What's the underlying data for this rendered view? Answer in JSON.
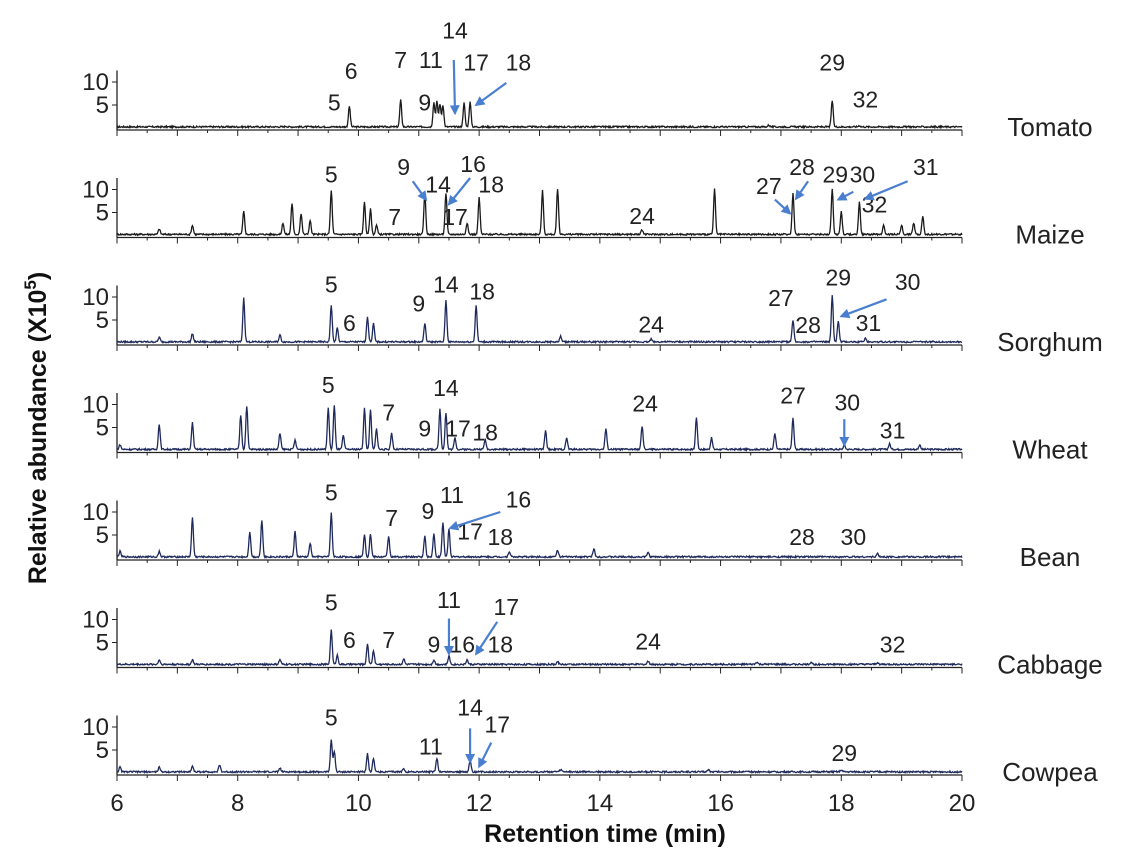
{
  "chart_data": {
    "type": "line",
    "xlabel": "Retention time (min)",
    "ylabel": "Relative abundance (X10",
    "ylabel_exp": "5",
    "ylabel_close": ")",
    "xlim": [
      6,
      20
    ],
    "x_ticks": [
      6,
      8,
      10,
      12,
      14,
      16,
      18,
      20
    ],
    "y_ticks": [
      5,
      10
    ],
    "colors": {
      "black": "#1a1a1a",
      "navy": "#1f2a5c",
      "arrow": "#4a7fd0"
    },
    "samples": [
      {
        "name": "Tomato",
        "color": "black",
        "peaks": [
          [
            8.8,
            0.15
          ],
          [
            9.85,
            4.5
          ],
          [
            10.7,
            5.8
          ],
          [
            11.25,
            5.3
          ],
          [
            11.3,
            5.5
          ],
          [
            11.35,
            5.0
          ],
          [
            11.4,
            4.8
          ],
          [
            11.75,
            5.2
          ],
          [
            11.85,
            5.4
          ],
          [
            16.8,
            0.4
          ],
          [
            17.85,
            5.7
          ],
          [
            18.3,
            0.3
          ]
        ],
        "labels": [
          {
            "text": "5",
            "x": 9.6,
            "y": 3.8
          },
          {
            "text": "6",
            "x": 9.88,
            "y": 10.7
          },
          {
            "text": "7",
            "x": 10.7,
            "y": 13.0
          },
          {
            "text": "11",
            "x": 11.2,
            "y": 13.0
          },
          {
            "text": "9",
            "x": 11.1,
            "y": 3.8
          },
          {
            "text": "14",
            "x": 11.6,
            "y": 19.5
          },
          {
            "text": "17",
            "x": 11.95,
            "y": 12.5
          },
          {
            "text": "18",
            "x": 12.65,
            "y": 12.5
          },
          {
            "text": "29",
            "x": 17.85,
            "y": 12.5
          },
          {
            "text": "32",
            "x": 18.4,
            "y": 4.5
          }
        ],
        "arrows": [
          {
            "x1": 11.58,
            "y1": 14.8,
            "x2": 11.6,
            "y2": 3.2
          },
          {
            "x1": 12.45,
            "y1": 9.8,
            "x2": 11.95,
            "y2": 5.0
          }
        ]
      },
      {
        "name": "Maize",
        "color": "black",
        "peaks": [
          [
            6.7,
            1.2
          ],
          [
            7.25,
            2.0
          ],
          [
            8.1,
            5.0
          ],
          [
            8.75,
            2.5
          ],
          [
            8.9,
            6.8
          ],
          [
            9.05,
            4.5
          ],
          [
            9.2,
            3.0
          ],
          [
            9.55,
            9.5
          ],
          [
            10.1,
            7.0
          ],
          [
            10.2,
            5.5
          ],
          [
            10.3,
            2.0
          ],
          [
            11.1,
            9.0
          ],
          [
            11.45,
            9.0
          ],
          [
            11.8,
            2.5
          ],
          [
            12.0,
            8.0
          ],
          [
            13.05,
            9.5
          ],
          [
            13.3,
            10.0
          ],
          [
            14.7,
            1.0
          ],
          [
            15.9,
            9.8
          ],
          [
            17.2,
            9.0
          ],
          [
            17.85,
            10.0
          ],
          [
            18.0,
            5.0
          ],
          [
            18.3,
            7.0
          ],
          [
            18.7,
            2.0
          ],
          [
            19.0,
            2.0
          ],
          [
            19.2,
            2.5
          ],
          [
            19.35,
            4.0
          ]
        ],
        "labels": [
          {
            "text": "5",
            "x": 9.55,
            "y": 11.5
          },
          {
            "text": "9",
            "x": 10.75,
            "y": 13.2
          },
          {
            "text": "14",
            "x": 11.32,
            "y": 9.3
          },
          {
            "text": "16",
            "x": 11.9,
            "y": 13.8
          },
          {
            "text": "17",
            "x": 11.6,
            "y": 2.3
          },
          {
            "text": "18",
            "x": 12.2,
            "y": 9.3
          },
          {
            "text": "7",
            "x": 10.6,
            "y": 2.3
          },
          {
            "text": "24",
            "x": 14.7,
            "y": 2.5
          },
          {
            "text": "27",
            "x": 16.8,
            "y": 9.0
          },
          {
            "text": "28",
            "x": 17.35,
            "y": 13.2
          },
          {
            "text": "29",
            "x": 17.9,
            "y": 11.5
          },
          {
            "text": "30",
            "x": 18.35,
            "y": 11.5
          },
          {
            "text": "31",
            "x": 19.4,
            "y": 13.2
          },
          {
            "text": "32",
            "x": 18.55,
            "y": 5.0
          }
        ],
        "arrows": [
          {
            "x1": 10.9,
            "y1": 11.8,
            "x2": 11.12,
            "y2": 7.8
          },
          {
            "x1": 11.85,
            "y1": 12.5,
            "x2": 11.5,
            "y2": 6.8
          },
          {
            "x1": 16.9,
            "y1": 7.8,
            "x2": 17.15,
            "y2": 4.8
          },
          {
            "x1": 17.45,
            "y1": 11.8,
            "x2": 17.25,
            "y2": 8.0
          },
          {
            "x1": 18.2,
            "y1": 9.5,
            "x2": 17.95,
            "y2": 7.8
          },
          {
            "x1": 19.1,
            "y1": 11.8,
            "x2": 18.4,
            "y2": 8.0
          }
        ]
      },
      {
        "name": "Sorghum",
        "color": "navy",
        "peaks": [
          [
            6.7,
            1.0
          ],
          [
            7.25,
            1.8
          ],
          [
            8.1,
            9.5
          ],
          [
            8.7,
            1.5
          ],
          [
            9.55,
            8.0
          ],
          [
            9.65,
            3.0
          ],
          [
            10.15,
            5.5
          ],
          [
            10.25,
            4.0
          ],
          [
            11.1,
            4.0
          ],
          [
            11.45,
            9.0
          ],
          [
            11.95,
            8.0
          ],
          [
            13.35,
            1.2
          ],
          [
            14.85,
            0.6
          ],
          [
            17.2,
            4.8
          ],
          [
            17.85,
            10.0
          ],
          [
            17.95,
            4.5
          ],
          [
            18.4,
            0.8
          ]
        ],
        "labels": [
          {
            "text": "5",
            "x": 9.55,
            "y": 11.0
          },
          {
            "text": "6",
            "x": 9.85,
            "y": 2.6
          },
          {
            "text": "9",
            "x": 11.0,
            "y": 6.8
          },
          {
            "text": "14",
            "x": 11.45,
            "y": 11.0
          },
          {
            "text": "18",
            "x": 12.05,
            "y": 9.5
          },
          {
            "text": "24",
            "x": 14.85,
            "y": 2.3
          },
          {
            "text": "27",
            "x": 17.0,
            "y": 8.0
          },
          {
            "text": "28",
            "x": 17.45,
            "y": 2.2
          },
          {
            "text": "29",
            "x": 17.95,
            "y": 12.5
          },
          {
            "text": "30",
            "x": 19.1,
            "y": 11.5
          },
          {
            "text": "31",
            "x": 18.45,
            "y": 2.6
          }
        ],
        "arrows": [
          {
            "x1": 18.75,
            "y1": 9.5,
            "x2": 18.0,
            "y2": 5.8
          }
        ]
      },
      {
        "name": "Wheat",
        "color": "navy",
        "peaks": [
          [
            6.05,
            1.0
          ],
          [
            6.7,
            5.5
          ],
          [
            7.25,
            5.8
          ],
          [
            8.05,
            7.5
          ],
          [
            8.15,
            9.5
          ],
          [
            8.7,
            3.5
          ],
          [
            8.95,
            2.0
          ],
          [
            9.5,
            9.0
          ],
          [
            9.6,
            9.5
          ],
          [
            9.75,
            3.0
          ],
          [
            10.1,
            9.0
          ],
          [
            10.2,
            8.5
          ],
          [
            10.3,
            4.5
          ],
          [
            10.55,
            3.5
          ],
          [
            11.35,
            8.8
          ],
          [
            11.45,
            8.0
          ],
          [
            11.6,
            2.5
          ],
          [
            12.1,
            2.2
          ],
          [
            13.1,
            4.0
          ],
          [
            13.45,
            2.5
          ],
          [
            14.1,
            4.5
          ],
          [
            14.7,
            5.0
          ],
          [
            15.6,
            7.0
          ],
          [
            15.85,
            2.5
          ],
          [
            16.9,
            3.5
          ],
          [
            17.2,
            6.8
          ],
          [
            18.05,
            1.0
          ],
          [
            18.8,
            1.2
          ],
          [
            19.3,
            1.0
          ]
        ],
        "labels": [
          {
            "text": "5",
            "x": 9.5,
            "y": 12.5
          },
          {
            "text": "7",
            "x": 10.5,
            "y": 6.5
          },
          {
            "text": "14",
            "x": 11.45,
            "y": 11.8
          },
          {
            "text": "9",
            "x": 11.1,
            "y": 3.0
          },
          {
            "text": "17",
            "x": 11.65,
            "y": 3.0
          },
          {
            "text": "18",
            "x": 12.1,
            "y": 2.2
          },
          {
            "text": "24",
            "x": 14.75,
            "y": 8.5
          },
          {
            "text": "27",
            "x": 17.2,
            "y": 10.2
          },
          {
            "text": "30",
            "x": 18.1,
            "y": 8.7
          },
          {
            "text": "31",
            "x": 18.85,
            "y": 2.6
          }
        ],
        "arrows": [
          {
            "x1": 18.05,
            "y1": 6.8,
            "x2": 18.05,
            "y2": 1.2
          }
        ]
      },
      {
        "name": "Bean",
        "color": "navy",
        "peaks": [
          [
            6.05,
            1.2
          ],
          [
            6.7,
            1.2
          ],
          [
            7.25,
            8.5
          ],
          [
            8.2,
            5.5
          ],
          [
            8.4,
            8.0
          ],
          [
            8.95,
            5.5
          ],
          [
            9.2,
            3.0
          ],
          [
            9.55,
            9.5
          ],
          [
            10.1,
            5.0
          ],
          [
            10.2,
            5.0
          ],
          [
            10.5,
            4.5
          ],
          [
            11.1,
            4.5
          ],
          [
            11.25,
            5.0
          ],
          [
            11.4,
            7.5
          ],
          [
            11.5,
            6.0
          ],
          [
            12.5,
            1.2
          ],
          [
            13.3,
            1.5
          ],
          [
            13.9,
            1.8
          ],
          [
            14.8,
            1.0
          ],
          [
            18.6,
            0.7
          ]
        ],
        "labels": [
          {
            "text": "5",
            "x": 9.55,
            "y": 12.5
          },
          {
            "text": "7",
            "x": 10.55,
            "y": 7.0
          },
          {
            "text": "9",
            "x": 11.15,
            "y": 8.5
          },
          {
            "text": "11",
            "x": 11.55,
            "y": 12.0
          },
          {
            "text": "16",
            "x": 12.65,
            "y": 11.0
          },
          {
            "text": "17",
            "x": 11.85,
            "y": 4.0
          },
          {
            "text": "18",
            "x": 12.35,
            "y": 2.8
          },
          {
            "text": "28",
            "x": 17.35,
            "y": 2.8
          },
          {
            "text": "30",
            "x": 18.2,
            "y": 2.8
          }
        ],
        "arrows": [
          {
            "x1": 12.35,
            "y1": 10.0,
            "x2": 11.52,
            "y2": 6.5
          }
        ]
      },
      {
        "name": "Cabbage",
        "color": "navy",
        "peaks": [
          [
            6.7,
            1.0
          ],
          [
            7.25,
            1.0
          ],
          [
            8.7,
            1.0
          ],
          [
            9.55,
            7.5
          ],
          [
            9.65,
            2.0
          ],
          [
            10.15,
            4.5
          ],
          [
            10.25,
            3.0
          ],
          [
            10.75,
            1.2
          ],
          [
            11.25,
            1.0
          ],
          [
            11.5,
            1.8
          ],
          [
            11.8,
            1.0
          ],
          [
            13.3,
            0.6
          ],
          [
            14.8,
            0.7
          ],
          [
            16.6,
            0.5
          ],
          [
            17.5,
            0.5
          ],
          [
            18.6,
            0.4
          ]
        ],
        "labels": [
          {
            "text": "5",
            "x": 9.55,
            "y": 12.0
          },
          {
            "text": "6",
            "x": 9.85,
            "y": 3.8
          },
          {
            "text": "7",
            "x": 10.5,
            "y": 3.8
          },
          {
            "text": "11",
            "x": 11.5,
            "y": 12.5
          },
          {
            "text": "9",
            "x": 11.25,
            "y": 2.8
          },
          {
            "text": "16",
            "x": 11.72,
            "y": 2.8
          },
          {
            "text": "17",
            "x": 12.45,
            "y": 11.0
          },
          {
            "text": "18",
            "x": 12.35,
            "y": 2.8
          },
          {
            "text": "24",
            "x": 14.8,
            "y": 3.5
          },
          {
            "text": "32",
            "x": 18.85,
            "y": 2.8
          }
        ],
        "arrows": [
          {
            "x1": 11.5,
            "y1": 10.2,
            "x2": 11.5,
            "y2": 2.5
          },
          {
            "x1": 12.3,
            "y1": 9.5,
            "x2": 11.95,
            "y2": 2.5
          }
        ]
      },
      {
        "name": "Cowpea",
        "color": "navy",
        "peaks": [
          [
            6.05,
            1.0
          ],
          [
            6.7,
            1.0
          ],
          [
            7.25,
            1.3
          ],
          [
            7.7,
            1.5
          ],
          [
            8.7,
            0.8
          ],
          [
            9.55,
            7.0
          ],
          [
            9.6,
            4.5
          ],
          [
            10.15,
            4.0
          ],
          [
            10.25,
            3.0
          ],
          [
            10.75,
            0.8
          ],
          [
            11.3,
            3.0
          ],
          [
            11.85,
            2.5
          ],
          [
            13.35,
            0.5
          ],
          [
            15.8,
            0.5
          ],
          [
            18.0,
            0.4
          ]
        ],
        "labels": [
          {
            "text": "5",
            "x": 9.55,
            "y": 10.3
          },
          {
            "text": "11",
            "x": 11.2,
            "y": 4.0
          },
          {
            "text": "14",
            "x": 11.85,
            "y": 12.5
          },
          {
            "text": "17",
            "x": 12.3,
            "y": 8.8
          },
          {
            "text": "29",
            "x": 18.05,
            "y": 2.6
          }
        ],
        "arrows": [
          {
            "x1": 11.85,
            "y1": 9.7,
            "x2": 11.85,
            "y2": 2.4
          },
          {
            "x1": 12.2,
            "y1": 6.6,
            "x2": 12.0,
            "y2": 1.4
          }
        ]
      }
    ]
  }
}
